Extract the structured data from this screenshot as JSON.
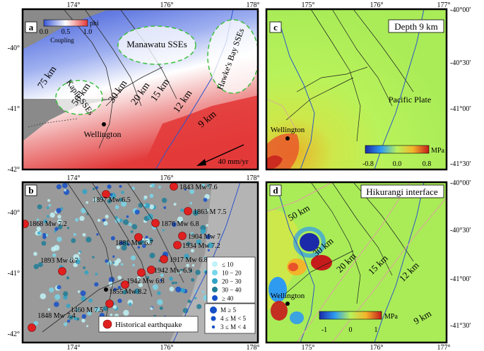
{
  "panels": {
    "a": {
      "letter": "a",
      "x_ticks": [
        "174°",
        "176°",
        "178°"
      ],
      "y_ticks": [
        "-40°",
        "-41°",
        "-42°"
      ],
      "colorbar": {
        "title": "phi",
        "ticks": [
          "0.0",
          "0.5",
          "1.0"
        ],
        "caption": "Coupling"
      },
      "labels": {
        "manawatu": "Manawatu SSEs",
        "hawkes_bay": "Hawke's Bay SSEs",
        "kapiti": "Kapiti SSEs",
        "km75": "75 km",
        "km50": "50 km",
        "km30": "30 km",
        "km20": "20 km",
        "km15": "15 km",
        "km12": "12 km",
        "km9": "9 km",
        "wellington": "Wellington",
        "velocity": "40 mm/yr"
      },
      "colors": {
        "land": "#8a8a8a",
        "sea": "#ffffff",
        "coupling_high": "#e33a3a",
        "coupling_low": "#3a57d8",
        "sse_outline": "#3cbf3c"
      }
    },
    "b": {
      "letter": "b",
      "x_ticks": [
        "174°",
        "176°",
        "178°"
      ],
      "y_ticks": [
        "-40°",
        "-41°",
        "-42°"
      ],
      "earthquakes": [
        {
          "label": "1843 Mw 7.6"
        },
        {
          "label": "1897 Mw 6.5"
        },
        {
          "label": "1863 M 7.5"
        },
        {
          "label": "1868 Mw 7.2"
        },
        {
          "label": "1876 Mw 6.8"
        },
        {
          "label": "1904 Mw 7"
        },
        {
          "label": "1881 Mw 6.7"
        },
        {
          "label": "1934 Mw 7.2"
        },
        {
          "label": "1893 Mw 6.7"
        },
        {
          "label": "1917 Mw 6.8"
        },
        {
          "label": "1942 Mw 6.9"
        },
        {
          "label": "1942 Mw 6.8"
        },
        {
          "label": "1855 Mw 8.2"
        },
        {
          "label": "1848 Mw 7.4"
        },
        {
          "label": "1460 M 7.5"
        }
      ],
      "depth_legend": [
        "≤ 10",
        "10 − 20",
        "20 − 30",
        "30 − 40",
        "≥ 40"
      ],
      "depth_colors": [
        "#bff3f7",
        "#78d6ea",
        "#2fa3c6",
        "#1f7d96",
        "#1550c8"
      ],
      "magnitude_legend": [
        "M ≥ 5",
        "4 ≤ M < 5",
        "3 ≤ M < 4"
      ],
      "historical_label": "Historical earthquake"
    },
    "c": {
      "letter": "c",
      "title": "Depth 9 km",
      "x_ticks": [
        "175°",
        "176°",
        "177°"
      ],
      "y_ticks": [
        "-40°00'",
        "-40°30'",
        "-41°00'",
        "-41°30'"
      ],
      "labels": {
        "pacific_plate": "Pacific Plate",
        "wellington": "Wellington"
      },
      "colorbar": {
        "unit": "MPa",
        "ticks": [
          "-0.8",
          "0.0",
          "0.8"
        ]
      }
    },
    "d": {
      "letter": "d",
      "title": "Hikurangi interface",
      "x_ticks": [
        "175°",
        "176°",
        "177°"
      ],
      "y_ticks": [
        "-40°00'",
        "-40°30'",
        "-41°00'",
        "-41°30'"
      ],
      "labels": {
        "km50": "50 km",
        "km30": "30 km",
        "km20": "20 km",
        "km15": "15 km",
        "km12": "12 km",
        "km9": "9 km",
        "wellington": "Wellington"
      },
      "colorbar": {
        "unit": "MPa",
        "ticks": [
          "-1",
          "0",
          "1"
        ]
      }
    }
  }
}
